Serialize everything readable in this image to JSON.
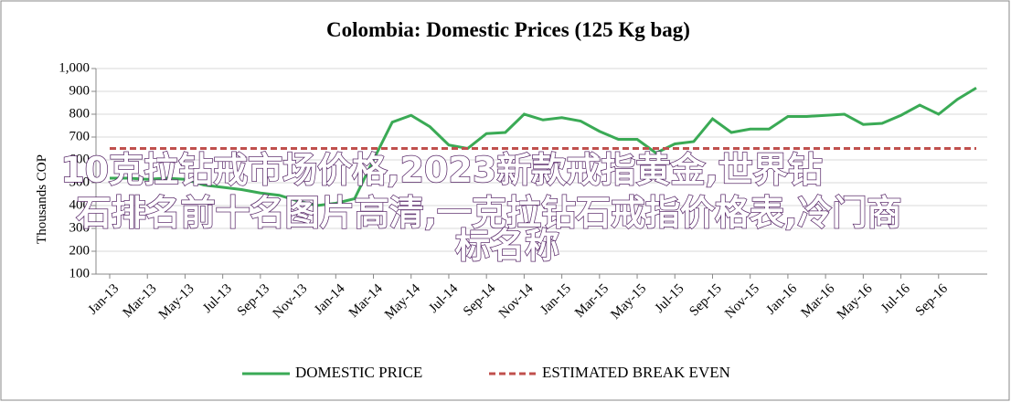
{
  "chart_data": {
    "type": "line",
    "title": "Colombia: Domestic Prices (125 Kg bag)",
    "y_label": "Thousands COP",
    "categories": [
      "Jan-13",
      null,
      "Mar-13",
      null,
      "May-13",
      null,
      "Jul-13",
      null,
      "Sep-13",
      null,
      "Nov-13",
      null,
      "Jan-14",
      null,
      "Mar-14",
      null,
      "May-14",
      null,
      "Jul-14",
      null,
      "Sep-14",
      null,
      "Nov-14",
      null,
      "Jan-15",
      null,
      "Mar-15",
      null,
      "May-15",
      null,
      "Jul-15",
      null,
      "Sep-15",
      null,
      "Nov-15",
      null,
      "Jan-16",
      null,
      "Mar-16",
      null,
      "May-16",
      null,
      "Jul-16",
      null,
      "Sep-16",
      null,
      null
    ],
    "series": [
      {
        "name": "DOMESTIC PRICE",
        "color": "#3aaa55",
        "style": "solid",
        "values": [
          520,
          520,
          515,
          520,
          515,
          490,
          480,
          470,
          455,
          445,
          420,
          400,
          410,
          430,
          600,
          765,
          795,
          745,
          665,
          650,
          715,
          720,
          800,
          775,
          785,
          770,
          725,
          690,
          690,
          630,
          670,
          680,
          780,
          720,
          735,
          735,
          790,
          790,
          795,
          800,
          755,
          760,
          795,
          840,
          800,
          865,
          915
        ]
      },
      {
        "name": "ESTIMATED BREAK EVEN",
        "color": "#c0504d",
        "style": "dashed",
        "values": [
          650,
          650,
          650,
          650,
          650,
          650,
          650,
          650,
          650,
          650,
          650,
          650,
          650,
          650,
          650,
          650,
          650,
          650,
          650,
          650,
          650,
          650,
          650,
          650,
          650,
          650,
          650,
          650,
          650,
          650,
          650,
          650,
          650,
          650,
          650,
          650,
          650,
          650,
          650,
          650,
          650,
          650,
          650,
          650,
          650,
          650,
          650
        ]
      }
    ],
    "ylim": [
      100,
      1000
    ],
    "yticks": [
      100,
      200,
      300,
      400,
      500,
      600,
      700,
      800,
      900,
      {
        "value": 1000,
        "label": "1,000"
      }
    ],
    "grid": true,
    "legend": "bottom"
  },
  "overlay_text": [
    "10克拉钻戒市场价格,2023新款戒指黄金,世界钻",
    "石排名前十名图片高清,一克拉钻石戒指价格表,冷门商",
    "标名称"
  ]
}
